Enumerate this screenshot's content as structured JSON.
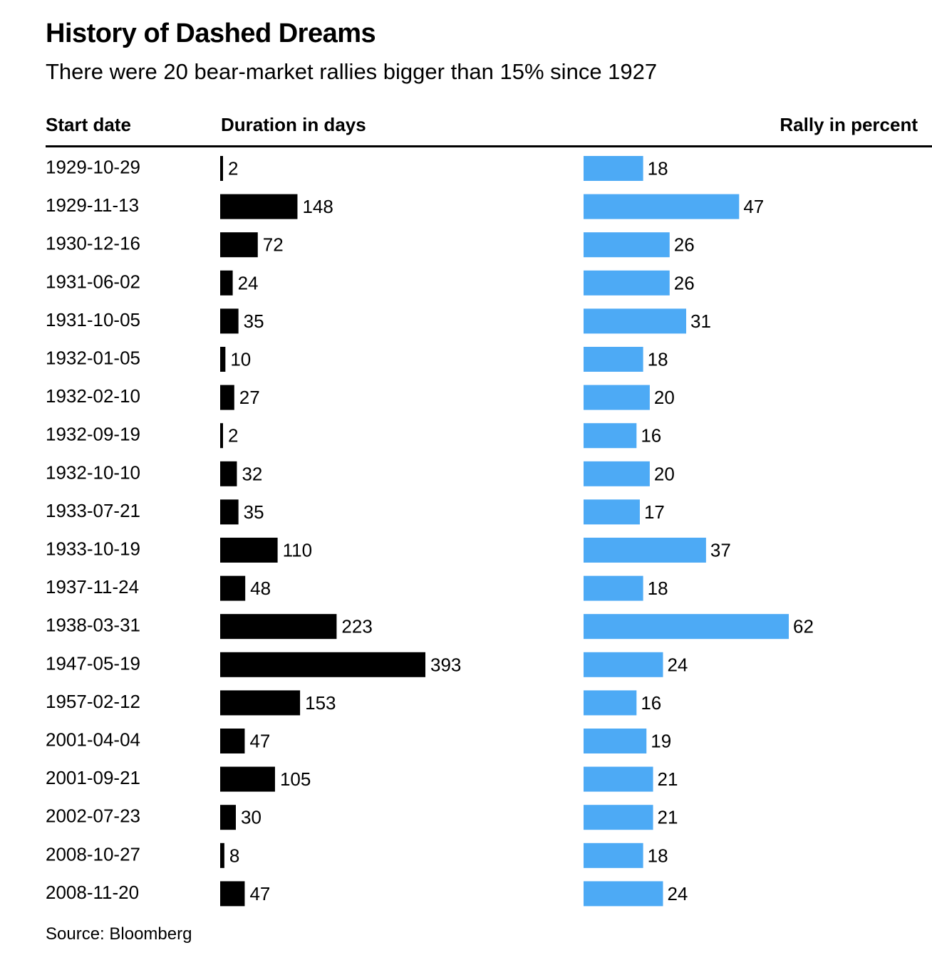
{
  "title": "History of Dashed Dreams",
  "subtitle": "There were 20 bear-market rallies bigger than 15% since 1927",
  "columns": {
    "start_date": "Start date",
    "duration": "Duration in days",
    "rally": "Rally in percent"
  },
  "source": "Source: Bloomberg",
  "colors": {
    "duration_bar": "#000000",
    "rally_bar": "#4daaf5"
  },
  "chart_data": {
    "type": "bar",
    "orientation": "horizontal",
    "categories": [
      "1929-10-29",
      "1929-11-13",
      "1930-12-16",
      "1931-06-02",
      "1931-10-05",
      "1932-01-05",
      "1932-02-10",
      "1932-09-19",
      "1932-10-10",
      "1933-07-21",
      "1933-10-19",
      "1937-11-24",
      "1938-03-31",
      "1947-05-19",
      "1957-02-12",
      "2001-04-04",
      "2001-09-21",
      "2002-07-23",
      "2008-10-27",
      "2008-11-20"
    ],
    "series": [
      {
        "name": "Duration in days",
        "values": [
          2,
          148,
          72,
          24,
          35,
          10,
          27,
          2,
          32,
          35,
          110,
          48,
          223,
          393,
          153,
          47,
          105,
          30,
          8,
          47
        ]
      },
      {
        "name": "Rally in percent",
        "values": [
          18,
          47,
          26,
          26,
          31,
          18,
          20,
          16,
          20,
          17,
          37,
          18,
          62,
          24,
          16,
          19,
          21,
          21,
          18,
          24
        ]
      }
    ],
    "data_labels": true,
    "grid": false,
    "legend": "none"
  }
}
